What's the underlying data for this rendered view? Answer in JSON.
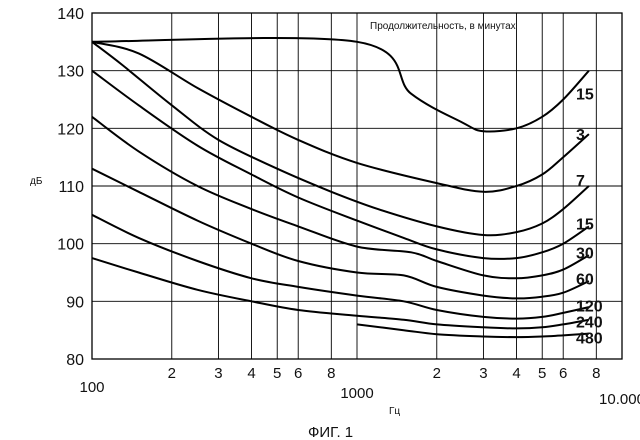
{
  "chart_data": {
    "type": "line",
    "title": "Продолжительность, в минутах",
    "ylabel": "дБ",
    "xlabel": "Гц",
    "caption": "ФИГ. 1",
    "xscale": "log",
    "xlim": [
      100,
      10000
    ],
    "ylim": [
      80,
      140
    ],
    "grid": true,
    "y_ticks": [
      "80",
      "90",
      "100",
      "110",
      "120",
      "130",
      "140"
    ],
    "x_ticks": [
      {
        "x": 100,
        "label": "100"
      },
      {
        "x": 200,
        "label": "2"
      },
      {
        "x": 300,
        "label": "3"
      },
      {
        "x": 400,
        "label": "4"
      },
      {
        "x": 500,
        "label": "5"
      },
      {
        "x": 600,
        "label": "6"
      },
      {
        "x": 800,
        "label": "8"
      },
      {
        "x": 1000,
        "label": "1000"
      },
      {
        "x": 2000,
        "label": "2"
      },
      {
        "x": 3000,
        "label": "3"
      },
      {
        "x": 4000,
        "label": "4"
      },
      {
        "x": 5000,
        "label": "5"
      },
      {
        "x": 6000,
        "label": "6"
      },
      {
        "x": 8000,
        "label": "8"
      },
      {
        "x": 10000,
        "label": "10.000"
      }
    ],
    "series": [
      {
        "name": "15",
        "label": "15",
        "ypos": 126,
        "points": [
          [
            100,
            135
          ],
          [
            1000,
            135
          ],
          [
            1600,
            126
          ],
          [
            2500,
            121
          ],
          [
            3000,
            119.5
          ],
          [
            4000,
            120
          ],
          [
            5000,
            122
          ],
          [
            6000,
            125
          ],
          [
            7500,
            130
          ]
        ]
      },
      {
        "name": "3",
        "label": "3",
        "ypos": 119,
        "points": [
          [
            100,
            135
          ],
          [
            150,
            133
          ],
          [
            250,
            127
          ],
          [
            400,
            122
          ],
          [
            600,
            118
          ],
          [
            1000,
            114
          ],
          [
            2000,
            110.5
          ],
          [
            3000,
            109
          ],
          [
            4000,
            110
          ],
          [
            5000,
            112
          ],
          [
            6000,
            115
          ],
          [
            7500,
            119
          ]
        ]
      },
      {
        "name": "7",
        "label": "7",
        "ypos": 111,
        "points": [
          [
            100,
            135
          ],
          [
            130,
            131
          ],
          [
            200,
            124
          ],
          [
            300,
            118
          ],
          [
            500,
            113
          ],
          [
            800,
            109
          ],
          [
            1200,
            106
          ],
          [
            2000,
            103
          ],
          [
            3000,
            101.5
          ],
          [
            4000,
            102
          ],
          [
            5000,
            103.5
          ],
          [
            6000,
            106
          ],
          [
            7500,
            110
          ]
        ]
      },
      {
        "name": "15",
        "label": "15",
        "ypos": 103.5,
        "points": [
          [
            100,
            130
          ],
          [
            150,
            124
          ],
          [
            250,
            117
          ],
          [
            400,
            112
          ],
          [
            600,
            108
          ],
          [
            1000,
            104
          ],
          [
            1500,
            101
          ],
          [
            2000,
            99
          ],
          [
            3000,
            97.5
          ],
          [
            4000,
            97.5
          ],
          [
            5000,
            98.5
          ],
          [
            6000,
            100
          ],
          [
            7500,
            103
          ]
        ]
      },
      {
        "name": "30",
        "label": "30",
        "ypos": 98.5,
        "points": [
          [
            100,
            122
          ],
          [
            150,
            116
          ],
          [
            250,
            110
          ],
          [
            400,
            106
          ],
          [
            600,
            103
          ],
          [
            1000,
            99.5
          ],
          [
            1600,
            98.5
          ],
          [
            2000,
            97
          ],
          [
            3000,
            94.5
          ],
          [
            4000,
            94
          ],
          [
            5000,
            94.5
          ],
          [
            6000,
            95.5
          ],
          [
            7500,
            98
          ]
        ]
      },
      {
        "name": "60",
        "label": "60",
        "ypos": 94,
        "points": [
          [
            100,
            113
          ],
          [
            150,
            109
          ],
          [
            250,
            104
          ],
          [
            400,
            100
          ],
          [
            600,
            97
          ],
          [
            1000,
            95
          ],
          [
            1500,
            94.5
          ],
          [
            2000,
            92.5
          ],
          [
            3000,
            91
          ],
          [
            4000,
            90.5
          ],
          [
            5000,
            90.8
          ],
          [
            6000,
            91.5
          ],
          [
            7500,
            93.5
          ]
        ]
      },
      {
        "name": "120",
        "label": "120",
        "ypos": 89.3,
        "points": [
          [
            100,
            105
          ],
          [
            150,
            101
          ],
          [
            250,
            97
          ],
          [
            400,
            94
          ],
          [
            600,
            92.5
          ],
          [
            1000,
            91
          ],
          [
            1500,
            90
          ],
          [
            2000,
            88.5
          ],
          [
            3000,
            87.3
          ],
          [
            4000,
            87
          ],
          [
            5000,
            87.3
          ],
          [
            6000,
            88
          ],
          [
            7500,
            89
          ]
        ]
      },
      {
        "name": "240",
        "label": "240",
        "ypos": 86.5,
        "points": [
          [
            100,
            97.5
          ],
          [
            150,
            95
          ],
          [
            250,
            92
          ],
          [
            400,
            90
          ],
          [
            600,
            88.5
          ],
          [
            1000,
            87.5
          ],
          [
            1500,
            86.8
          ],
          [
            2000,
            86
          ],
          [
            3000,
            85.5
          ],
          [
            4000,
            85.3
          ],
          [
            5000,
            85.5
          ],
          [
            6000,
            86
          ],
          [
            7500,
            86.8
          ]
        ]
      },
      {
        "name": "480",
        "label": "480",
        "ypos": 83.7,
        "points": [
          [
            1000,
            86
          ],
          [
            1500,
            85
          ],
          [
            2000,
            84.3
          ],
          [
            3000,
            83.9
          ],
          [
            4000,
            83.8
          ],
          [
            5000,
            83.9
          ],
          [
            6000,
            84.1
          ],
          [
            7500,
            84.4
          ]
        ]
      }
    ]
  }
}
